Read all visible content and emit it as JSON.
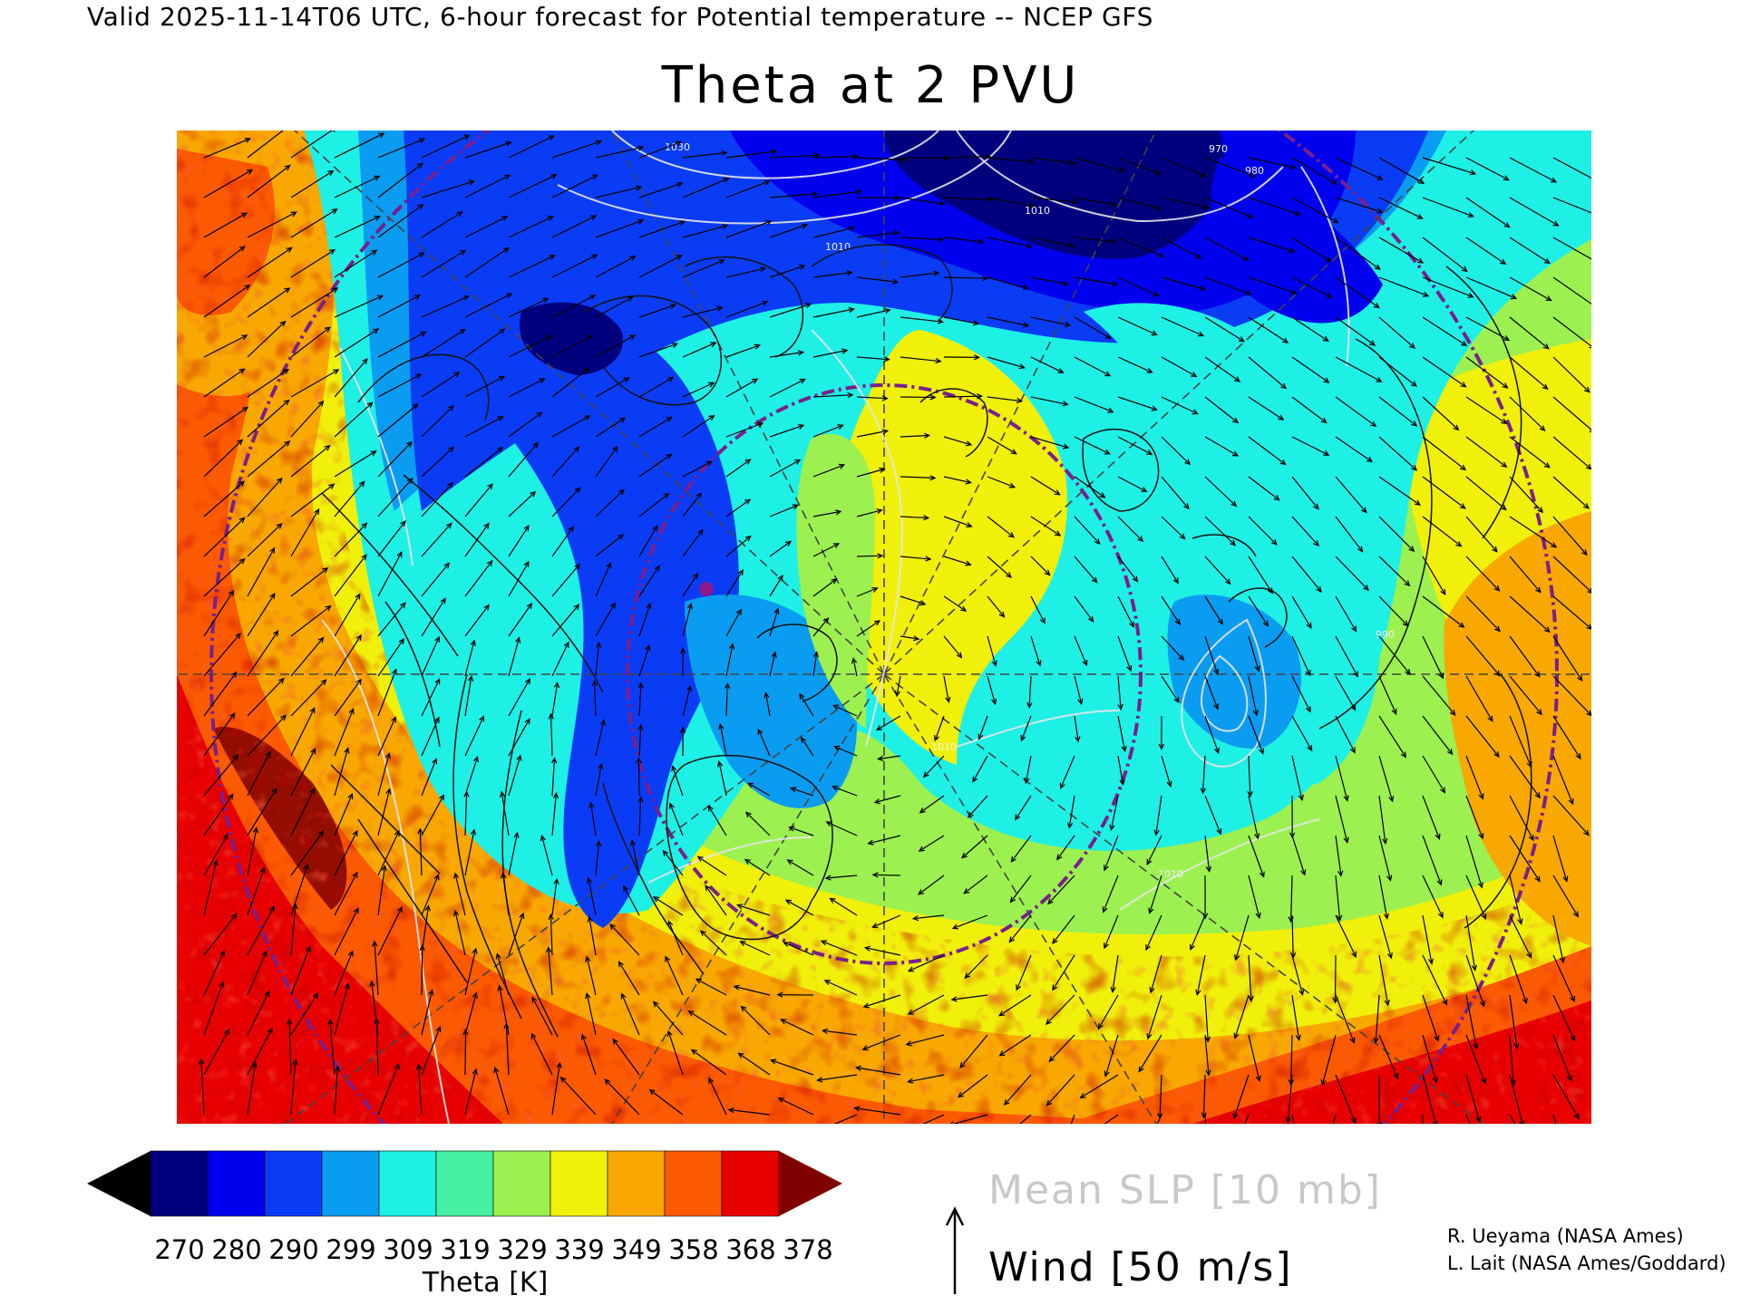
{
  "header": {
    "caption": "Valid 2025-11-14T06 UTC, 6-hour forecast for Potential temperature -- NCEP GFS",
    "title": "Theta at 2 PVU"
  },
  "colors": {
    "bins": [
      "#000000",
      "#00007f",
      "#0000ee",
      "#0b3cf5",
      "#0a9cf0",
      "#1ef0e6",
      "#46f0a0",
      "#9cf050",
      "#f0f00a",
      "#f8a800",
      "#fc5a00",
      "#e80000",
      "#800000"
    ],
    "slp_contour": "#e6e6e6",
    "circle": "#7a1f8c",
    "coast": "#111111",
    "wind_arrow": "#000000"
  },
  "colorbar": {
    "ticks": [
      "270",
      "280",
      "290",
      "299",
      "309",
      "319",
      "329",
      "339",
      "349",
      "358",
      "368",
      "378"
    ],
    "title": "Theta [K]"
  },
  "legend": {
    "slp": "Mean SLP [10 mb]",
    "wind": "Wind [50 m/s]"
  },
  "credits": {
    "line1": "R. Ueyama (NASA Ames)",
    "line2": "L. Lait (NASA Ames/Goddard)"
  },
  "map": {
    "slp_labels": [
      "1030",
      "1010",
      "1010",
      "1010",
      "970",
      "980",
      "990",
      "1010"
    ]
  }
}
